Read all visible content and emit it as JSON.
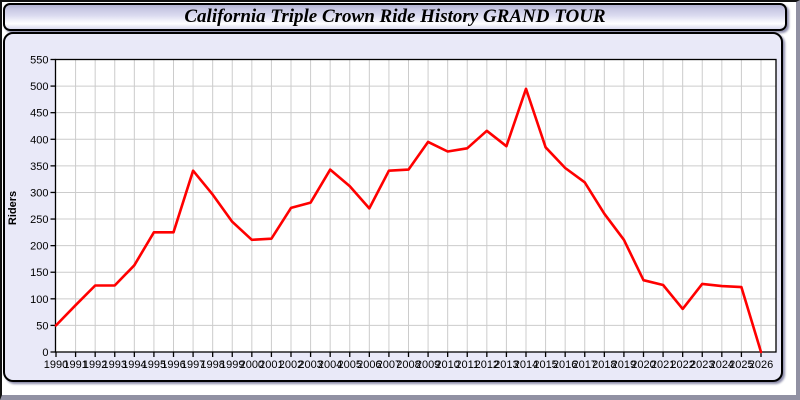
{
  "header": {
    "title": "California Triple Crown Ride History GRAND TOUR"
  },
  "colors": {
    "line": "#ff0000",
    "panel_background": "#e9e9f8",
    "plot_background": "#ffffff",
    "grid": "#cccccc",
    "axis": "#000000"
  },
  "chart_data": {
    "type": "line",
    "title": "California Triple Crown Ride History GRAND TOUR",
    "xlabel": "",
    "ylabel": "Riders",
    "ylim": [
      0,
      550
    ],
    "ytick_step": 50,
    "grid": true,
    "legend": "none",
    "categories": [
      "1990",
      "1991",
      "1992",
      "1993",
      "1994",
      "1995",
      "1996",
      "1997",
      "1998",
      "1999",
      "2000",
      "2001",
      "2002",
      "2003",
      "2004",
      "2005",
      "2006",
      "2007",
      "2008",
      "2009",
      "2010",
      "2011",
      "2012",
      "2013",
      "2014",
      "2015",
      "2016",
      "2017",
      "2018",
      "2019",
      "2020",
      "2021",
      "2022",
      "2023",
      "2024",
      "2025",
      "2026"
    ],
    "series": [
      {
        "name": "Riders",
        "color": "#ff0000",
        "values": [
          50,
          88,
          125,
          125,
          163,
          225,
          225,
          341,
          296,
          245,
          211,
          213,
          271,
          281,
          343,
          312,
          270,
          341,
          343,
          395,
          377,
          383,
          416,
          387,
          495,
          385,
          346,
          319,
          260,
          211,
          135,
          126,
          81,
          128,
          124,
          122,
          0
        ]
      }
    ]
  }
}
